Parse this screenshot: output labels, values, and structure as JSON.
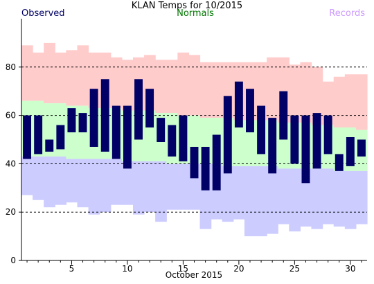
{
  "chart_data": {
    "type": "bar",
    "title": "KLAN Temps for 10/2015",
    "legend": [
      {
        "label": "Observed",
        "color": "#000066"
      },
      {
        "label": "Normals",
        "color": "#007700"
      },
      {
        "label": "Records",
        "color": "#cc99ff"
      }
    ],
    "xlabel": "October 2015",
    "ylabel": "",
    "x_ticks": [
      5,
      10,
      15,
      20,
      25,
      30
    ],
    "y_ticks": [
      0,
      20,
      40,
      60,
      80
    ],
    "ylim": [
      0,
      100
    ],
    "xlim": [
      0.5,
      31.5
    ],
    "grid_y": [
      20,
      40,
      60,
      80
    ],
    "colors": {
      "observed": "#000066",
      "normals": "#ccffcc",
      "record_high": "#ffcccc",
      "record_low": "#ccccff"
    },
    "days": [
      1,
      2,
      3,
      4,
      5,
      6,
      7,
      8,
      9,
      10,
      11,
      12,
      13,
      14,
      15,
      16,
      17,
      18,
      19,
      20,
      21,
      22,
      23,
      24,
      25,
      26,
      27,
      28,
      29,
      30,
      31
    ],
    "observed_high": [
      60,
      60,
      50,
      56,
      63,
      61,
      71,
      75,
      64,
      64,
      75,
      71,
      59,
      56,
      60,
      47,
      47,
      52,
      68,
      74,
      71,
      64,
      59,
      70,
      60,
      60,
      61,
      60,
      44,
      51,
      50
    ],
    "observed_low": [
      42,
      44,
      45,
      46,
      53,
      53,
      47,
      45,
      42,
      38,
      50,
      55,
      49,
      43,
      41,
      34,
      29,
      29,
      36,
      55,
      53,
      44,
      36,
      50,
      40,
      32,
      38,
      44,
      37,
      39,
      43
    ],
    "normal_high": [
      66,
      66,
      65,
      65,
      64,
      64,
      63,
      63,
      63,
      62,
      62,
      62,
      61,
      61,
      60,
      60,
      59,
      59,
      59,
      58,
      58,
      58,
      58,
      57,
      57,
      57,
      56,
      56,
      55,
      55,
      54
    ],
    "normal_low": [
      43,
      43,
      43,
      43,
      42,
      42,
      42,
      42,
      42,
      41,
      41,
      41,
      41,
      40,
      40,
      40,
      40,
      40,
      39,
      39,
      39,
      39,
      39,
      38,
      38,
      38,
      38,
      38,
      37,
      37,
      37
    ],
    "record_high": [
      89,
      86,
      90,
      86,
      87,
      89,
      86,
      86,
      84,
      83,
      84,
      85,
      83,
      83,
      86,
      85,
      82,
      82,
      82,
      82,
      82,
      82,
      84,
      84,
      81,
      82,
      80,
      74,
      76,
      77,
      77
    ],
    "record_low": [
      27,
      25,
      22,
      23,
      24,
      22,
      19,
      20,
      23,
      23,
      19,
      20,
      16,
      21,
      21,
      21,
      13,
      17,
      16,
      17,
      10,
      10,
      11,
      15,
      12,
      14,
      13,
      15,
      14,
      13,
      15
    ]
  }
}
